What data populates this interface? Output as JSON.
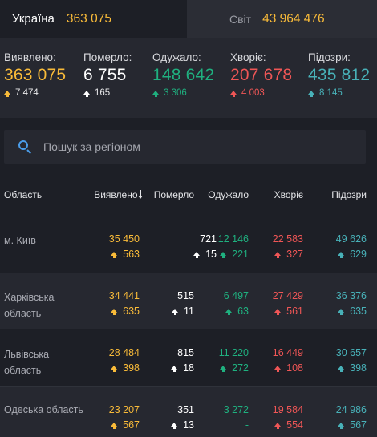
{
  "tabs": [
    {
      "label": "Україна",
      "value": "363 075"
    },
    {
      "label": "Світ",
      "value": "43 964 476"
    }
  ],
  "summary": [
    {
      "label": "Виявлено:",
      "value": "363 075",
      "delta": "7 474",
      "color": "#f9bb39"
    },
    {
      "label": "Померло:",
      "value": "6 755",
      "delta": "165",
      "color": "#ffffff"
    },
    {
      "label": "Одужало:",
      "value": "148 642",
      "delta": "3 306",
      "color": "#1fb07f"
    },
    {
      "label": "Хворіє:",
      "value": "207 678",
      "delta": "4 003",
      "color": "#ef5656"
    },
    {
      "label": "Підозри:",
      "value": "435 812",
      "delta": "8 145",
      "color": "#48b1b8"
    }
  ],
  "search": {
    "placeholder": "Пошук за регіоном"
  },
  "table": {
    "headers": [
      "Область",
      "Виявлено",
      "Померло",
      "Одужало",
      "Хворіє",
      "Підозри"
    ],
    "rows": [
      {
        "region": "м. Київ",
        "cells": [
          [
            "35 450",
            "563"
          ],
          [
            "721",
            "15"
          ],
          [
            "12 146",
            "221"
          ],
          [
            "22 583",
            "327"
          ],
          [
            "49 626",
            "629"
          ]
        ]
      },
      {
        "region": "Харківська область",
        "cells": [
          [
            "34 441",
            "635"
          ],
          [
            "515",
            "11"
          ],
          [
            "6 497",
            "63"
          ],
          [
            "27 429",
            "561"
          ],
          [
            "36 376",
            "635"
          ]
        ]
      },
      {
        "region": "Львівська область",
        "cells": [
          [
            "28 484",
            "398"
          ],
          [
            "815",
            "18"
          ],
          [
            "11 220",
            "272"
          ],
          [
            "16 449",
            "108"
          ],
          [
            "30 657",
            "398"
          ]
        ]
      },
      {
        "region": "Одеська область",
        "cells": [
          [
            "23 207",
            "567"
          ],
          [
            "351",
            "13"
          ],
          [
            "3 272",
            "-"
          ],
          [
            "19 584",
            "554"
          ],
          [
            "24 986",
            "567"
          ]
        ]
      }
    ]
  }
}
